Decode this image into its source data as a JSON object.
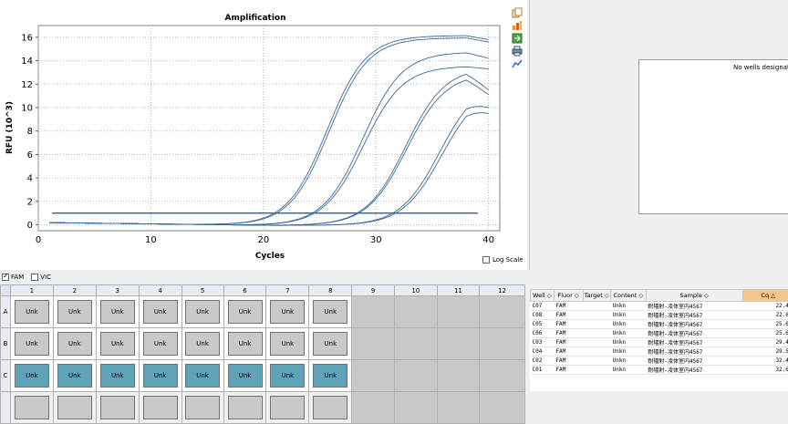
{
  "chart": {
    "title": "Amplification",
    "xlabel": "Cycles",
    "ylabel": "RFU (10^3)",
    "x_ticks": [
      "0",
      "10",
      "20",
      "30",
      "40"
    ],
    "y_ticks": [
      "0",
      "2",
      "4",
      "6",
      "8",
      "10",
      "12",
      "14",
      "16"
    ],
    "log_scale_label": "Log Scale"
  },
  "chart_data": {
    "type": "line",
    "title": "Amplification",
    "xlabel": "Cycles",
    "ylabel": "RFU (10^3)",
    "xlim": [
      0,
      41
    ],
    "ylim": [
      -0.5,
      17
    ],
    "x_ticks": [
      0,
      10,
      20,
      30,
      40
    ],
    "y_ticks": [
      0,
      2,
      4,
      6,
      8,
      10,
      12,
      14,
      16
    ],
    "grid": true,
    "threshold": 1.0,
    "series": [
      {
        "cq": 22.44,
        "plateau": 16.2,
        "end": 15.8
      },
      {
        "cq": 22.63,
        "plateau": 16.0,
        "end": 15.6
      },
      {
        "cq": 25.63,
        "plateau": 14.8,
        "end": 14.2
      },
      {
        "cq": 25.68,
        "plateau": 13.6,
        "end": 13.3
      },
      {
        "cq": 29.44,
        "plateau": 13.5,
        "end": 11.5
      },
      {
        "cq": 29.52,
        "plateau": 13.0,
        "end": 11.1
      },
      {
        "cq": 32.46,
        "plateau": 12.5,
        "end": 10.0
      },
      {
        "cq": 32.65,
        "plateau": 12.0,
        "end": 9.5
      }
    ]
  },
  "right_panel": {
    "message": "No wells designated as"
  },
  "fluor_filter": [
    {
      "label": "FAM",
      "checked": true
    },
    {
      "label": "VIC",
      "checked": false
    }
  ],
  "plate": {
    "columns": [
      "1",
      "2",
      "3",
      "4",
      "5",
      "6",
      "7",
      "8",
      "9",
      "10",
      "11",
      "12"
    ],
    "rows": [
      {
        "label": "A",
        "wells": [
          "Unk",
          "Unk",
          "Unk",
          "Unk",
          "Unk",
          "Unk",
          "Unk",
          "Unk"
        ],
        "style": "grey"
      },
      {
        "label": "B",
        "wells": [
          "Unk",
          "Unk",
          "Unk",
          "Unk",
          "Unk",
          "Unk",
          "Unk",
          "Unk"
        ],
        "style": "grey"
      },
      {
        "label": "C",
        "wells": [
          "Unk",
          "Unk",
          "Unk",
          "Unk",
          "Unk",
          "Unk",
          "Unk",
          "Unk"
        ],
        "style": "teal"
      },
      {
        "label": "",
        "wells": [
          "",
          "",
          "",
          "",
          "",
          "",
          "",
          ""
        ],
        "style": "grey"
      }
    ]
  },
  "results": {
    "headers": [
      "Well",
      "Fluor",
      "Target",
      "Content",
      "Sample",
      "Cq"
    ],
    "rows": [
      {
        "well": "C07",
        "fluor": "FAM",
        "target": "",
        "content": "Unkn",
        "sample": "耐辐射-凌体室内4567",
        "cq": "22.44"
      },
      {
        "well": "C08",
        "fluor": "FAM",
        "target": "",
        "content": "Unkn",
        "sample": "耐辐射-凌体室内4567",
        "cq": "22.63"
      },
      {
        "well": "C05",
        "fluor": "FAM",
        "target": "",
        "content": "Unkn",
        "sample": "耐辐射-凌体室内4567",
        "cq": "25.63"
      },
      {
        "well": "C06",
        "fluor": "FAM",
        "target": "",
        "content": "Unkn",
        "sample": "耐辐射-凌体室内4567",
        "cq": "25.68"
      },
      {
        "well": "C03",
        "fluor": "FAM",
        "target": "",
        "content": "Unkn",
        "sample": "耐辐射-凌体室内4567",
        "cq": "29.44"
      },
      {
        "well": "C04",
        "fluor": "FAM",
        "target": "",
        "content": "Unkn",
        "sample": "耐辐射-凌体室内4567",
        "cq": "29.52"
      },
      {
        "well": "C02",
        "fluor": "FAM",
        "target": "",
        "content": "Unkn",
        "sample": "耐辐射-凌体室内4567",
        "cq": "32.46"
      },
      {
        "well": "C01",
        "fluor": "FAM",
        "target": "",
        "content": "Unkn",
        "sample": "耐辐射-凌体室内4567",
        "cq": "32.65"
      }
    ]
  },
  "toolbar": {
    "icons": [
      "copy-icon",
      "bar-chart-icon",
      "export-icon",
      "print-icon",
      "graph-settings-icon"
    ]
  }
}
